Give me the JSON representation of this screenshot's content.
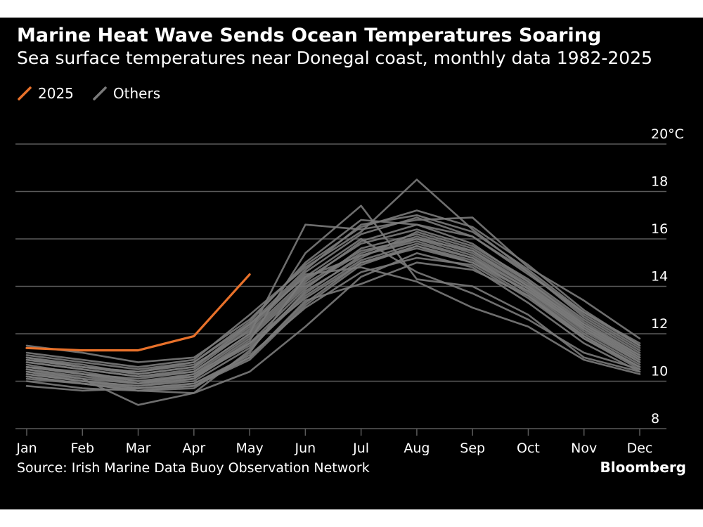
{
  "title": "Marine Heat Wave Sends Ocean Temperatures Soaring",
  "subtitle": "Sea surface temperatures near Donegal coast, monthly data 1982-2025",
  "legend": {
    "highlight_label": "2025",
    "others_label": "Others"
  },
  "source": "Source: Irish Marine Data Buoy Observation Network",
  "brand": "Bloomberg",
  "colors": {
    "background": "#000000",
    "highlight": "#e8712a",
    "others": "#7a7a7a",
    "grid": "#5a5a5a",
    "text": "#ffffff"
  },
  "chart_data": {
    "type": "line",
    "categories": [
      "Jan",
      "Feb",
      "Mar",
      "Apr",
      "May",
      "Jun",
      "Jul",
      "Aug",
      "Sep",
      "Oct",
      "Nov",
      "Dec"
    ],
    "y_ticks": [
      {
        "value": 8,
        "label": "8"
      },
      {
        "value": 10,
        "label": "10"
      },
      {
        "value": 12,
        "label": "12"
      },
      {
        "value": 14,
        "label": "14"
      },
      {
        "value": 16,
        "label": "16"
      },
      {
        "value": 18,
        "label": "18"
      },
      {
        "value": 20,
        "label": "20°C"
      }
    ],
    "ylim": [
      8,
      20
    ],
    "ylabel": "°C",
    "highlight_series": {
      "name": "2025",
      "values": [
        11.4,
        11.3,
        11.3,
        11.9,
        14.5,
        null,
        null,
        null,
        null,
        null,
        null,
        null
      ]
    },
    "other_series": [
      {
        "name": "o1",
        "values": [
          10.2,
          9.9,
          9.6,
          9.7,
          11.2,
          14.4,
          15.3,
          15.9,
          15.2,
          13.7,
          11.9,
          10.6
        ]
      },
      {
        "name": "o2",
        "values": [
          10.5,
          10.2,
          9.9,
          10.1,
          11.6,
          13.9,
          15.6,
          16.2,
          15.5,
          14.1,
          12.3,
          11.0
        ]
      },
      {
        "name": "o3",
        "values": [
          10.8,
          10.5,
          10.2,
          10.4,
          12.0,
          14.2,
          15.9,
          16.6,
          15.8,
          14.2,
          12.5,
          11.1
        ]
      },
      {
        "name": "o4",
        "values": [
          11.0,
          10.7,
          10.3,
          10.6,
          12.3,
          14.6,
          16.2,
          16.9,
          16.1,
          14.6,
          12.8,
          11.4
        ]
      },
      {
        "name": "o5",
        "values": [
          10.3,
          10.0,
          9.7,
          9.9,
          11.0,
          13.3,
          15.0,
          15.6,
          15.0,
          13.8,
          12.0,
          10.7
        ]
      },
      {
        "name": "o6",
        "values": [
          10.6,
          10.4,
          10.0,
          10.2,
          11.8,
          14.0,
          15.4,
          16.1,
          15.4,
          14.0,
          12.2,
          10.9
        ]
      },
      {
        "name": "o7",
        "values": [
          10.1,
          9.9,
          9.6,
          9.5,
          10.4,
          12.3,
          14.4,
          15.4,
          14.8,
          13.3,
          11.6,
          10.4
        ]
      },
      {
        "name": "o8",
        "values": [
          11.5,
          11.2,
          10.8,
          11.0,
          12.6,
          14.9,
          16.5,
          17.2,
          16.5,
          14.9,
          13.0,
          11.5
        ]
      },
      {
        "name": "o9",
        "values": [
          10.9,
          10.6,
          10.4,
          10.7,
          12.1,
          14.3,
          15.8,
          16.4,
          15.7,
          14.3,
          12.6,
          11.2
        ]
      },
      {
        "name": "o10",
        "values": [
          10.4,
          10.0,
          9.8,
          10.0,
          11.4,
          13.6,
          15.1,
          15.8,
          15.2,
          13.9,
          12.1,
          10.8
        ]
      },
      {
        "name": "o11",
        "values": [
          9.8,
          9.6,
          9.7,
          9.9,
          11.1,
          13.1,
          14.6,
          15.2,
          14.9,
          13.5,
          11.8,
          10.5
        ]
      },
      {
        "name": "o12",
        "values": [
          10.7,
          10.3,
          9.9,
          10.3,
          11.9,
          14.1,
          15.5,
          16.0,
          15.5,
          14.0,
          12.4,
          11.0
        ]
      },
      {
        "name": "o13",
        "values": [
          10.5,
          10.1,
          9.0,
          9.5,
          11.3,
          13.8,
          15.2,
          16.3,
          15.6,
          14.2,
          12.4,
          11.1
        ]
      },
      {
        "name": "o14",
        "values": [
          11.2,
          10.9,
          10.6,
          10.9,
          12.8,
          14.8,
          16.3,
          18.5,
          16.4,
          14.6,
          12.7,
          11.3
        ]
      },
      {
        "name": "o15",
        "values": [
          10.6,
          10.3,
          10.1,
          10.4,
          12.0,
          16.6,
          16.4,
          16.8,
          16.9,
          14.8,
          13.4,
          11.8
        ]
      },
      {
        "name": "o16",
        "values": [
          10.3,
          10.0,
          9.8,
          10.1,
          11.7,
          15.4,
          17.4,
          14.3,
          14.0,
          12.8,
          11.0,
          10.4
        ]
      },
      {
        "name": "o17",
        "values": [
          10.8,
          10.5,
          10.2,
          10.5,
          12.2,
          14.5,
          14.8,
          14.2,
          13.1,
          12.3,
          10.9,
          10.3
        ]
      },
      {
        "name": "o18",
        "values": [
          11.0,
          10.6,
          10.3,
          10.6,
          12.4,
          14.4,
          16.0,
          14.6,
          13.7,
          12.6,
          11.2,
          10.5
        ]
      },
      {
        "name": "o19",
        "values": [
          10.2,
          9.9,
          9.7,
          9.8,
          11.0,
          13.4,
          14.1,
          15.0,
          14.7,
          13.6,
          11.8,
          10.6
        ]
      },
      {
        "name": "o20",
        "values": [
          10.9,
          10.6,
          10.4,
          10.8,
          12.5,
          15.0,
          16.8,
          16.6,
          16.1,
          14.5,
          12.9,
          11.6
        ]
      },
      {
        "name": "o21",
        "values": [
          10.4,
          10.1,
          9.9,
          10.2,
          11.5,
          13.7,
          15.3,
          16.0,
          15.3,
          13.9,
          12.3,
          10.9
        ]
      },
      {
        "name": "o22",
        "values": [
          10.6,
          10.3,
          10.0,
          10.3,
          11.6,
          13.5,
          15.0,
          15.7,
          15.1,
          13.8,
          12.2,
          10.8
        ]
      },
      {
        "name": "o23",
        "values": [
          11.1,
          10.8,
          10.5,
          10.8,
          12.4,
          14.7,
          16.6,
          17.0,
          16.3,
          14.7,
          12.9,
          11.5
        ]
      },
      {
        "name": "o24",
        "values": [
          10.0,
          9.7,
          9.6,
          9.8,
          10.9,
          13.2,
          14.9,
          15.7,
          15.0,
          13.6,
          11.9,
          10.6
        ]
      }
    ]
  }
}
